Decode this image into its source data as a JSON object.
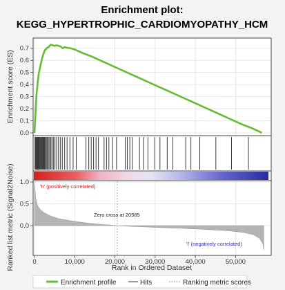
{
  "chart_data": {
    "type": "line",
    "title_line1": "Enrichment plot:",
    "title_line2": "KEGG_HYPERTROPHIC_CARDIOMYOPATHY_HCM",
    "es_ylabel": "Enrichment score (ES)",
    "metric_ylabel": "Ranked list metric (Signal2Noise)",
    "xlabel": "Rank in Ordered Dataset",
    "xlim": [
      0,
      58000
    ],
    "es_ylim": [
      0,
      0.75
    ],
    "metric_ylim": [
      -1.0,
      1.0
    ],
    "x_ticks": [
      "0",
      "10,000",
      "20,000",
      "30,000",
      "40,000",
      "50,000"
    ],
    "x_tick_values": [
      0,
      10000,
      20000,
      30000,
      40000,
      50000
    ],
    "es_ticks": [
      "0.0",
      "0.1",
      "0.2",
      "0.3",
      "0.4",
      "0.5",
      "0.6",
      "0.7"
    ],
    "es_tick_values": [
      0,
      0.1,
      0.2,
      0.3,
      0.4,
      0.5,
      0.6,
      0.7
    ],
    "metric_ticks": [
      "1.0",
      "0.5",
      "0.0"
    ],
    "metric_tick_values": [
      1.0,
      0.5,
      0.0
    ],
    "series": [
      {
        "name": "Enrichment profile",
        "color": "#66bb33",
        "x": [
          0,
          500,
          1000,
          1500,
          2000,
          2500,
          3000,
          3500,
          4000,
          4500,
          5000,
          5500,
          6000,
          6500,
          7000,
          7500,
          8000,
          9000,
          10000,
          12000,
          14000,
          16000,
          18000,
          20000,
          22000,
          25000,
          28000,
          31000,
          34000,
          37000,
          40000,
          43000,
          46000,
          49000,
          52000,
          54000,
          56000,
          56500
        ],
        "y": [
          0.0,
          0.32,
          0.48,
          0.56,
          0.63,
          0.68,
          0.7,
          0.71,
          0.73,
          0.725,
          0.72,
          0.725,
          0.72,
          0.715,
          0.7,
          0.71,
          0.705,
          0.7,
          0.69,
          0.66,
          0.635,
          0.605,
          0.575,
          0.545,
          0.515,
          0.47,
          0.425,
          0.38,
          0.335,
          0.29,
          0.245,
          0.2,
          0.155,
          0.11,
          0.065,
          0.04,
          0.01,
          0.0
        ]
      }
    ],
    "hits": [
      120,
      280,
      450,
      610,
      780,
      930,
      1100,
      1260,
      1420,
      1600,
      1790,
      1950,
      2130,
      2300,
      2500,
      2700,
      2900,
      3120,
      3350,
      3600,
      3850,
      4100,
      4400,
      4750,
      5100,
      5500,
      5950,
      6400,
      6900,
      7500,
      8100,
      8800,
      9600,
      10400,
      12800,
      13500,
      14100,
      14700,
      15300,
      15900,
      17300,
      17900,
      18500,
      19400,
      20400,
      22600,
      23100,
      23700,
      24300,
      26100,
      27100,
      28200,
      29900,
      31200,
      33000,
      34400,
      37600,
      38900,
      41100,
      45100,
      49000,
      53200
    ],
    "metric_curve": {
      "x": [
        0,
        300,
        800,
        1500,
        2500,
        4000,
        6000,
        9000,
        13000,
        17000,
        20585,
        24000,
        30000,
        36000,
        42000,
        48000,
        52000,
        54500,
        56000,
        56800,
        57000
      ],
      "y": [
        1.0,
        0.62,
        0.45,
        0.36,
        0.29,
        0.22,
        0.16,
        0.11,
        0.06,
        0.025,
        0.0,
        -0.025,
        -0.06,
        -0.09,
        -0.13,
        -0.18,
        -0.24,
        -0.32,
        -0.45,
        -0.65,
        -0.85
      ]
    },
    "zero_cross_label": "Zero cross at 20585",
    "zero_cross_x": 20585,
    "pos_label": "'h' (positively correlated)",
    "neg_label": "'l' (negatively correlated)",
    "legend": [
      {
        "label": "Enrichment profile",
        "color": "#66bb33"
      },
      {
        "label": "Hits",
        "color": "#555555"
      },
      {
        "label": "Ranking metric scores",
        "color": "#aaaaaa"
      }
    ],
    "grid": true,
    "legend_position": "bottom"
  }
}
